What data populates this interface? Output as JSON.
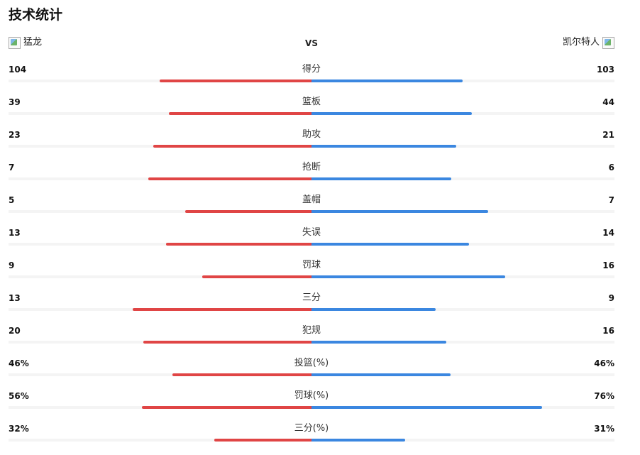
{
  "title": "技术统计",
  "teams": {
    "home": {
      "name": "猛龙",
      "logo_icon": "team-logo-broken-image-icon"
    },
    "vs": "VS",
    "away": {
      "name": "凯尔特人",
      "logo_icon": "team-logo-broken-image-icon"
    }
  },
  "colors": {
    "home_bar": "#e04545",
    "away_bar": "#3b87e0",
    "track": "#f4f4f4"
  },
  "stats": [
    {
      "label": "得分",
      "home": "104",
      "away": "103",
      "home_share": 0.502,
      "away_share": 0.498
    },
    {
      "label": "篮板",
      "home": "39",
      "away": "44",
      "home_share": 0.47,
      "away_share": 0.53
    },
    {
      "label": "助攻",
      "home": "23",
      "away": "21",
      "home_share": 0.523,
      "away_share": 0.477
    },
    {
      "label": "抢断",
      "home": "7",
      "away": "6",
      "home_share": 0.538,
      "away_share": 0.462
    },
    {
      "label": "盖帽",
      "home": "5",
      "away": "7",
      "home_share": 0.417,
      "away_share": 0.583
    },
    {
      "label": "失误",
      "home": "13",
      "away": "14",
      "home_share": 0.481,
      "away_share": 0.519
    },
    {
      "label": "罚球",
      "home": "9",
      "away": "16",
      "home_share": 0.36,
      "away_share": 0.64
    },
    {
      "label": "三分",
      "home": "13",
      "away": "9",
      "home_share": 0.591,
      "away_share": 0.409
    },
    {
      "label": "犯规",
      "home": "20",
      "away": "16",
      "home_share": 0.556,
      "away_share": 0.444
    },
    {
      "label": "投篮(%)",
      "home": "46%",
      "away": "46%",
      "home_share": 0.46,
      "away_share": 0.46
    },
    {
      "label": "罚球(%)",
      "home": "56%",
      "away": "76%",
      "home_share": 0.56,
      "away_share": 0.76
    },
    {
      "label": "三分(%)",
      "home": "32%",
      "away": "31%",
      "home_share": 0.32,
      "away_share": 0.31
    }
  ]
}
